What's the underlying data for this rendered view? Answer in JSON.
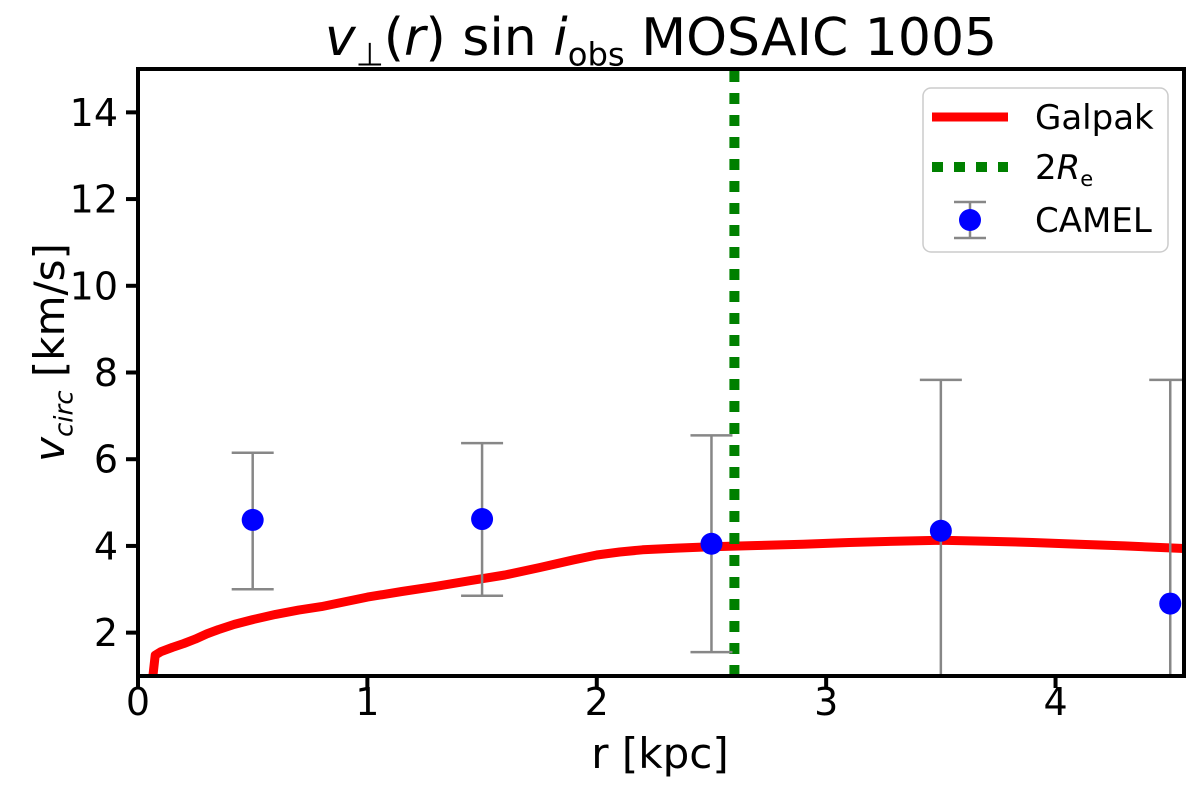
{
  "figure": {
    "background": "#ffffff",
    "title_plain": "v⊥(r) sin iobs MOSAIC 1005"
  },
  "chart_data": {
    "type": "line+scatter",
    "title_segments": [
      {
        "text": "v",
        "italic": true
      },
      {
        "text": "⊥",
        "sub": true
      },
      {
        "text": "(",
        "italic": false
      },
      {
        "text": "r",
        "italic": true
      },
      {
        "text": ")",
        "italic": false
      },
      {
        "text": " sin ",
        "italic": false
      },
      {
        "text": "i",
        "italic": true
      },
      {
        "text": "obs",
        "sub": true
      },
      {
        "text": " MOSAIC 1005",
        "italic": false
      }
    ],
    "xlabel": "r [kpc]",
    "ylabel_plain": "vcirc [km/s]",
    "ylabel_segments": [
      {
        "text": "v",
        "italic": true
      },
      {
        "text": "circ",
        "italic": true,
        "sub": true
      },
      {
        "text": " [km/s]",
        "italic": false
      }
    ],
    "xlim": [
      0,
      4.56
    ],
    "ylim": [
      1,
      15
    ],
    "xticks": [
      0,
      1,
      2,
      3,
      4
    ],
    "yticks": [
      2,
      4,
      6,
      8,
      10,
      12,
      14
    ],
    "grid": false,
    "axis_color": "#000000",
    "series": [
      {
        "name": "Galpak",
        "kind": "line",
        "color": "#ff0000",
        "linewidth": 9,
        "points": [
          [
            0.065,
            1.0
          ],
          [
            0.075,
            1.48
          ],
          [
            0.1,
            1.56
          ],
          [
            0.15,
            1.66
          ],
          [
            0.2,
            1.75
          ],
          [
            0.25,
            1.85
          ],
          [
            0.3,
            1.97
          ],
          [
            0.35,
            2.07
          ],
          [
            0.42,
            2.19
          ],
          [
            0.5,
            2.3
          ],
          [
            0.6,
            2.42
          ],
          [
            0.7,
            2.52
          ],
          [
            0.8,
            2.6
          ],
          [
            0.9,
            2.71
          ],
          [
            1.0,
            2.82
          ],
          [
            1.15,
            2.95
          ],
          [
            1.3,
            3.07
          ],
          [
            1.45,
            3.2
          ],
          [
            1.6,
            3.33
          ],
          [
            1.75,
            3.5
          ],
          [
            1.9,
            3.68
          ],
          [
            2.0,
            3.79
          ],
          [
            2.1,
            3.86
          ],
          [
            2.2,
            3.91
          ],
          [
            2.35,
            3.95
          ],
          [
            2.5,
            3.98
          ],
          [
            2.7,
            4.01
          ],
          [
            2.9,
            4.04
          ],
          [
            3.1,
            4.08
          ],
          [
            3.3,
            4.11
          ],
          [
            3.5,
            4.13
          ],
          [
            3.7,
            4.11
          ],
          [
            3.9,
            4.08
          ],
          [
            4.1,
            4.04
          ],
          [
            4.3,
            4.0
          ],
          [
            4.56,
            3.94
          ]
        ]
      },
      {
        "name": "2Re",
        "kind": "vline",
        "color": "#008000",
        "linewidth": 10,
        "dash": [
          11,
          11
        ],
        "x": 2.6
      },
      {
        "name": "CAMEL",
        "kind": "errorbar-scatter",
        "color": "#0000ff",
        "error_color": "#878787",
        "marker_radius": 11,
        "x": [
          0.5,
          1.5,
          2.5,
          3.5,
          4.5
        ],
        "y": [
          4.6,
          4.62,
          4.05,
          4.35,
          2.67
        ],
        "y_err_high": [
          6.15,
          6.37,
          6.55,
          7.83,
          7.83
        ],
        "y_err_low": [
          3.0,
          2.85,
          1.55,
          0.85,
          -2.5
        ]
      }
    ],
    "legend": {
      "position": "upper right",
      "border_color": "#cccccc",
      "entries": [
        {
          "key": "galpak",
          "label_plain": "Galpak",
          "marker": "line",
          "color": "#ff0000",
          "label_segments": [
            {
              "text": "Galpak"
            }
          ]
        },
        {
          "key": "2re",
          "label_plain": "2Re",
          "marker": "dashed-line",
          "color": "#008000",
          "label_segments": [
            {
              "text": "2"
            },
            {
              "text": "R",
              "italic": true
            },
            {
              "text": "e",
              "sub": true
            }
          ]
        },
        {
          "key": "camel",
          "label_plain": "CAMEL",
          "marker": "errorbar-point",
          "color": "#0000ff",
          "error_color": "#878787",
          "label_segments": [
            {
              "text": "CAMEL"
            }
          ]
        }
      ]
    }
  }
}
